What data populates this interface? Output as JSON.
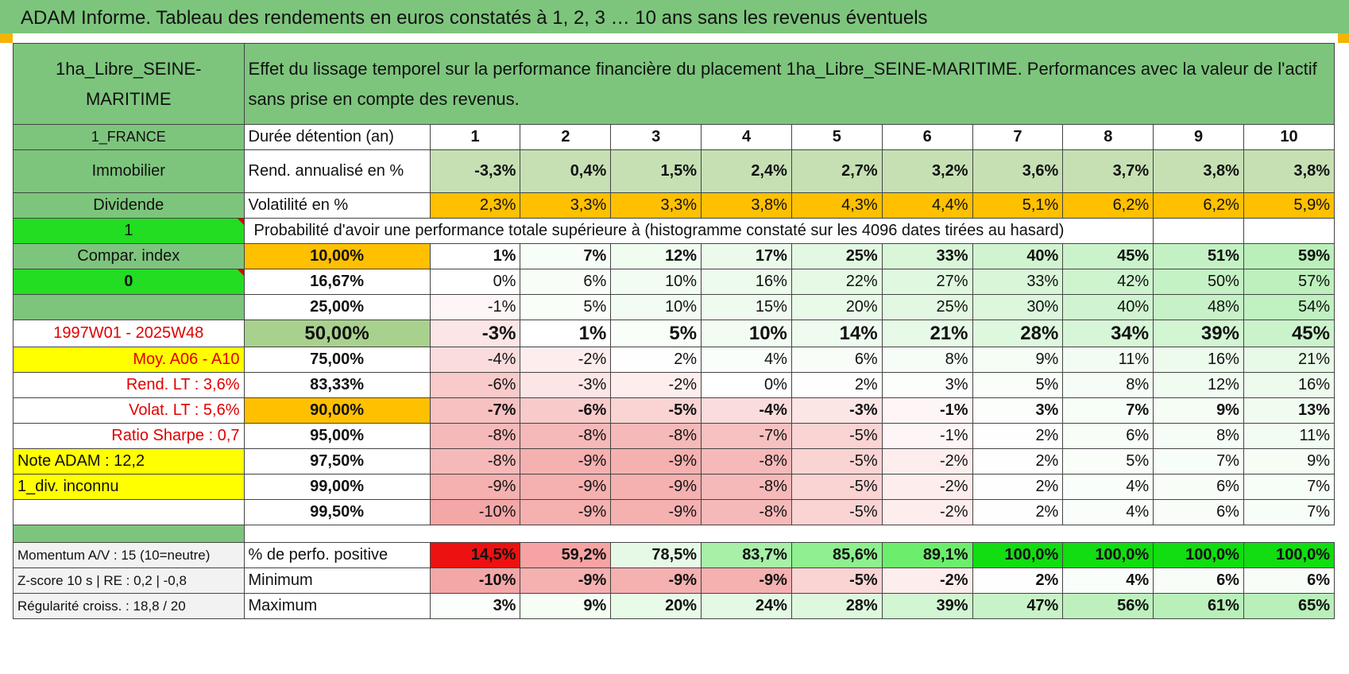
{
  "title": "ADAM Informe. Tableau des rendements en euros constatés à 1, 2, 3 … 10 ans sans les revenus éventuels",
  "asset_name": "1ha_Libre_SEINE-MARITIME",
  "description": "Effet du lissage temporel sur la performance financière du placement 1ha_Libre_SEINE-MARITIME. Performances avec la valeur de l'actif sans prise en compte des revenus.",
  "side": {
    "country": "1_FRANCE",
    "category": "Immobilier",
    "type": "Dividende",
    "flag1": "1",
    "compar": "Compar. index",
    "flag0": "0",
    "period": "1997W01 - 2025W48",
    "moy": "Moy. A06 - A10",
    "rend_lt": "Rend. LT :   3,6%",
    "volat_lt": "Volat. LT :   5,6%",
    "sharpe": "Ratio Sharpe :    0,7",
    "note": "Note ADAM : 12,2",
    "div": "1_div. inconnu"
  },
  "duration_label": "Durée détention (an)",
  "years": [
    "1",
    "2",
    "3",
    "4",
    "5",
    "6",
    "7",
    "8",
    "9",
    "10"
  ],
  "rend_label": "Rend. annualisé en %",
  "rend": [
    "-3,3%",
    "0,4%",
    "1,5%",
    "2,4%",
    "2,7%",
    "3,2%",
    "3,6%",
    "3,7%",
    "3,8%",
    "3,8%"
  ],
  "vol_label": "Volatilité en %",
  "vol": [
    "2,3%",
    "3,3%",
    "3,3%",
    "3,8%",
    "4,3%",
    "4,4%",
    "5,1%",
    "6,2%",
    "6,2%",
    "5,9%"
  ],
  "prob_label": "Probabilité d'avoir une performance totale supérieure à (histogramme constaté sur les 4096 dates tirées au hasard)",
  "prob_rows": [
    {
      "p": "10,00%",
      "v": [
        "1%",
        "7%",
        "12%",
        "17%",
        "25%",
        "33%",
        "40%",
        "45%",
        "51%",
        "59%"
      ]
    },
    {
      "p": "16,67%",
      "v": [
        "0%",
        "6%",
        "10%",
        "16%",
        "22%",
        "27%",
        "33%",
        "42%",
        "50%",
        "57%"
      ]
    },
    {
      "p": "25,00%",
      "v": [
        "-1%",
        "5%",
        "10%",
        "15%",
        "20%",
        "25%",
        "30%",
        "40%",
        "48%",
        "54%"
      ]
    },
    {
      "p": "50,00%",
      "v": [
        "-3%",
        "1%",
        "5%",
        "10%",
        "14%",
        "21%",
        "28%",
        "34%",
        "39%",
        "45%"
      ]
    },
    {
      "p": "75,00%",
      "v": [
        "-4%",
        "-2%",
        "2%",
        "4%",
        "6%",
        "8%",
        "9%",
        "11%",
        "16%",
        "21%"
      ]
    },
    {
      "p": "83,33%",
      "v": [
        "-6%",
        "-3%",
        "-2%",
        "0%",
        "2%",
        "3%",
        "5%",
        "8%",
        "12%",
        "16%"
      ]
    },
    {
      "p": "90,00%",
      "v": [
        "-7%",
        "-6%",
        "-5%",
        "-4%",
        "-3%",
        "-1%",
        "3%",
        "7%",
        "9%",
        "13%"
      ]
    },
    {
      "p": "95,00%",
      "v": [
        "-8%",
        "-8%",
        "-8%",
        "-7%",
        "-5%",
        "-1%",
        "2%",
        "6%",
        "8%",
        "11%"
      ]
    },
    {
      "p": "97,50%",
      "v": [
        "-8%",
        "-9%",
        "-9%",
        "-8%",
        "-5%",
        "-2%",
        "2%",
        "5%",
        "7%",
        "9%"
      ]
    },
    {
      "p": "99,00%",
      "v": [
        "-9%",
        "-9%",
        "-9%",
        "-8%",
        "-5%",
        "-2%",
        "2%",
        "4%",
        "6%",
        "7%"
      ]
    },
    {
      "p": "99,50%",
      "v": [
        "-10%",
        "-9%",
        "-9%",
        "-8%",
        "-5%",
        "-2%",
        "2%",
        "4%",
        "6%",
        "7%"
      ]
    }
  ],
  "bottom": [
    {
      "side": "Momentum A/V : 15 (10=neutre)",
      "label": "% de perfo. positive",
      "v": [
        "14,5%",
        "59,2%",
        "78,5%",
        "83,7%",
        "85,6%",
        "89,1%",
        "100,0%",
        "100,0%",
        "100,0%",
        "100,0%"
      ]
    },
    {
      "side": "Z-score 10 s | RE : 0,2 | -0,8",
      "label": "Minimum",
      "v": [
        "-10%",
        "-9%",
        "-9%",
        "-9%",
        "-5%",
        "-2%",
        "2%",
        "4%",
        "6%",
        "6%"
      ]
    },
    {
      "side": "Régularité croiss. : 18,8 / 20",
      "label": "Maximum",
      "v": [
        "3%",
        "9%",
        "20%",
        "24%",
        "28%",
        "39%",
        "47%",
        "56%",
        "61%",
        "65%"
      ]
    }
  ],
  "colors": {
    "header_green": "#7dc57d",
    "bright_green": "#22dd22",
    "yellow": "#ffff00",
    "orange": "#ffc000",
    "red_text": "#e00000"
  }
}
